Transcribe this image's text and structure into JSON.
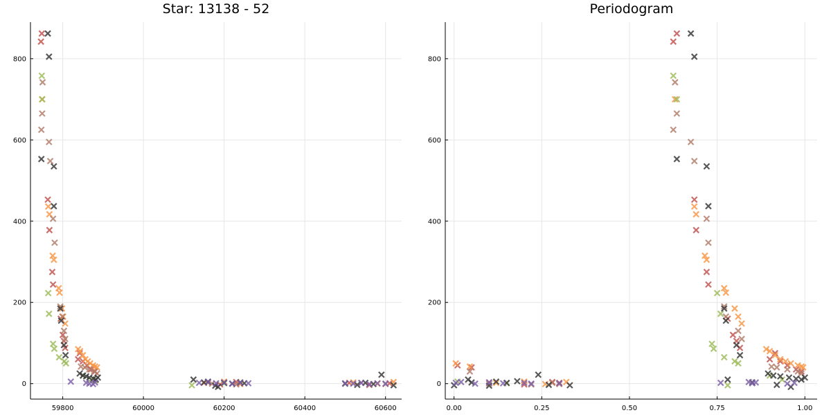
{
  "chart_data": [
    {
      "type": "scatter",
      "title": "Star: 13138 - 52",
      "xlabel": "",
      "ylabel": "",
      "xlim": [
        59720,
        60640
      ],
      "ylim": [
        -38,
        890
      ],
      "xticks": [
        59800,
        60000,
        60200,
        60400,
        60600
      ],
      "xtick_labels": [
        "59800",
        "60000",
        "60200",
        "60400",
        "60600"
      ],
      "yticks": [
        0,
        200,
        400,
        600,
        800
      ],
      "ytick_labels": [
        "0",
        "200",
        "400",
        "600",
        "800"
      ],
      "grid": true,
      "marker": "x",
      "series": [
        {
          "color": "#c0504d",
          "points": [
            [
              59748,
              862
            ],
            [
              59746,
              842
            ],
            [
              59763,
              453
            ],
            [
              59767,
              378
            ],
            [
              59774,
              275
            ],
            [
              59776,
              244
            ],
            [
              59795,
              160
            ],
            [
              59800,
              120
            ],
            [
              59803,
              105
            ],
            [
              59806,
              88
            ],
            [
              59838,
              60
            ],
            [
              59842,
              75
            ],
            [
              59850,
              55
            ],
            [
              59860,
              45
            ],
            [
              59870,
              35
            ],
            [
              59880,
              30
            ],
            [
              60160,
              3
            ],
            [
              60190,
              -2
            ],
            [
              60230,
              4
            ],
            [
              60510,
              2
            ],
            [
              60560,
              -3
            ],
            [
              60610,
              1
            ]
          ]
        },
        {
          "color": "#f79646",
          "points": [
            [
              59749,
              700
            ],
            [
              59764,
              436
            ],
            [
              59767,
              417
            ],
            [
              59775,
              315
            ],
            [
              59778,
              305
            ],
            [
              59790,
              235
            ],
            [
              59792,
              224
            ],
            [
              59798,
              185
            ],
            [
              59801,
              165
            ],
            [
              59806,
              148
            ],
            [
              59838,
              85
            ],
            [
              59843,
              80
            ],
            [
              59850,
              70
            ],
            [
              59856,
              60
            ],
            [
              59862,
              55
            ],
            [
              59868,
              50
            ],
            [
              59875,
              45
            ],
            [
              59880,
              42
            ],
            [
              59885,
              40
            ],
            [
              60150,
              2
            ],
            [
              60200,
              5
            ],
            [
              60240,
              -1
            ],
            [
              60520,
              3
            ],
            [
              60580,
              0
            ],
            [
              60620,
              4
            ]
          ]
        },
        {
          "color": "#9bbb59",
          "points": [
            [
              59748,
              758
            ],
            [
              59749,
              700
            ],
            [
              59764,
              223
            ],
            [
              59766,
              172
            ],
            [
              59776,
              98
            ],
            [
              59779,
              86
            ],
            [
              59791,
              65
            ],
            [
              59804,
              55
            ],
            [
              59808,
              50
            ],
            [
              59850,
              20
            ],
            [
              59870,
              10
            ],
            [
              59880,
              8
            ],
            [
              60120,
              -4
            ],
            [
              60200,
              1
            ]
          ]
        },
        {
          "color": "#b07b68",
          "points": [
            [
              59750,
              742
            ],
            [
              59749,
              665
            ],
            [
              59747,
              625
            ],
            [
              59766,
              595
            ],
            [
              59769,
              548
            ],
            [
              59776,
              406
            ],
            [
              59780,
              347
            ],
            [
              59794,
              190
            ],
            [
              59799,
              165
            ],
            [
              59803,
              130
            ],
            [
              59806,
              110
            ],
            [
              59845,
              42
            ],
            [
              59855,
              40
            ],
            [
              59866,
              35
            ],
            [
              59878,
              30
            ],
            [
              59885,
              25
            ],
            [
              60170,
              0
            ],
            [
              60230,
              -2
            ],
            [
              60540,
              2
            ],
            [
              60600,
              -1
            ]
          ]
        },
        {
          "color": "#333333",
          "points": [
            [
              59763,
              862
            ],
            [
              59766,
              805
            ],
            [
              59747,
              553
            ],
            [
              59778,
              535
            ],
            [
              59778,
              437
            ],
            [
              59794,
              185
            ],
            [
              59796,
              155
            ],
            [
              59803,
              95
            ],
            [
              59807,
              70
            ],
            [
              59842,
              25
            ],
            [
              59850,
              20
            ],
            [
              59858,
              18
            ],
            [
              59866,
              15
            ],
            [
              59876,
              12
            ],
            [
              59882,
              10
            ],
            [
              59887,
              15
            ],
            [
              60124,
              10
            ],
            [
              60150,
              3
            ],
            [
              60160,
              5
            ],
            [
              60178,
              -5
            ],
            [
              60185,
              -8
            ],
            [
              60200,
              2
            ],
            [
              60220,
              0
            ],
            [
              60240,
              3
            ],
            [
              60250,
              1
            ],
            [
              60500,
              0
            ],
            [
              60530,
              -3
            ],
            [
              60550,
              2
            ],
            [
              60570,
              -1
            ],
            [
              60590,
              22
            ],
            [
              60620,
              -4
            ]
          ]
        },
        {
          "color": "#7b5ea7",
          "points": [
            [
              59820,
              5
            ],
            [
              59858,
              2
            ],
            [
              59866,
              0
            ],
            [
              59875,
              -1
            ],
            [
              59880,
              3
            ],
            [
              60138,
              2
            ],
            [
              60160,
              4
            ],
            [
              60180,
              1
            ],
            [
              60200,
              3
            ],
            [
              60220,
              0
            ],
            [
              60240,
              2
            ],
            [
              60260,
              1
            ],
            [
              60500,
              1
            ],
            [
              60520,
              0
            ],
            [
              60540,
              2
            ],
            [
              60560,
              -1
            ],
            [
              60580,
              1
            ],
            [
              60600,
              0
            ]
          ]
        }
      ]
    },
    {
      "type": "scatter",
      "title": "Periodogram",
      "xlabel": "",
      "ylabel": "",
      "xlim": [
        -0.025,
        1.035
      ],
      "ylim": [
        -38,
        890
      ],
      "xticks": [
        0,
        0.25,
        0.5,
        0.75,
        1.0
      ],
      "xtick_labels": [
        "0.00",
        "0.25",
        "0.50",
        "0.75",
        "1.00"
      ],
      "yticks": [
        0,
        200,
        400,
        600,
        800
      ],
      "ytick_labels": [
        "0",
        "200",
        "400",
        "600",
        "800"
      ],
      "grid": true,
      "marker": "x",
      "series": [
        {
          "color": "#c0504d",
          "points": [
            [
              0.635,
              862
            ],
            [
              0.625,
              842
            ],
            [
              0.685,
              453
            ],
            [
              0.69,
              378
            ],
            [
              0.72,
              275
            ],
            [
              0.725,
              244
            ],
            [
              0.78,
              160
            ],
            [
              0.795,
              120
            ],
            [
              0.805,
              105
            ],
            [
              0.815,
              88
            ],
            [
              0.9,
              60
            ],
            [
              0.915,
              75
            ],
            [
              0.93,
              55
            ],
            [
              0.95,
              45
            ],
            [
              0.975,
              35
            ],
            [
              0.99,
              30
            ],
            [
              0.01,
              45
            ],
            [
              0.05,
              40
            ],
            [
              0.1,
              3
            ],
            [
              0.2,
              -2
            ],
            [
              0.28,
              4
            ],
            [
              0.3,
              2
            ]
          ]
        },
        {
          "color": "#f79646",
          "points": [
            [
              0.63,
              700
            ],
            [
              0.685,
              436
            ],
            [
              0.69,
              417
            ],
            [
              0.715,
              315
            ],
            [
              0.72,
              305
            ],
            [
              0.77,
              235
            ],
            [
              0.775,
              224
            ],
            [
              0.8,
              185
            ],
            [
              0.81,
              165
            ],
            [
              0.82,
              148
            ],
            [
              0.89,
              85
            ],
            [
              0.9,
              80
            ],
            [
              0.915,
              70
            ],
            [
              0.93,
              60
            ],
            [
              0.945,
              55
            ],
            [
              0.96,
              50
            ],
            [
              0.98,
              45
            ],
            [
              0.99,
              42
            ],
            [
              0.995,
              40
            ],
            [
              0.005,
              50
            ],
            [
              0.045,
              42
            ],
            [
              0.12,
              2
            ],
            [
              0.2,
              5
            ],
            [
              0.26,
              -1
            ],
            [
              0.32,
              4
            ]
          ]
        },
        {
          "color": "#9bbb59",
          "points": [
            [
              0.625,
              758
            ],
            [
              0.635,
              700
            ],
            [
              0.75,
              223
            ],
            [
              0.76,
              172
            ],
            [
              0.735,
              98
            ],
            [
              0.74,
              86
            ],
            [
              0.77,
              65
            ],
            [
              0.8,
              55
            ],
            [
              0.81,
              50
            ],
            [
              0.9,
              20
            ],
            [
              0.935,
              10
            ],
            [
              0.78,
              -4
            ],
            [
              0.01,
              5
            ],
            [
              0.15,
              1
            ]
          ]
        },
        {
          "color": "#b07b68",
          "points": [
            [
              0.63,
              742
            ],
            [
              0.635,
              665
            ],
            [
              0.625,
              625
            ],
            [
              0.675,
              595
            ],
            [
              0.685,
              548
            ],
            [
              0.72,
              406
            ],
            [
              0.725,
              347
            ],
            [
              0.77,
              190
            ],
            [
              0.775,
              165
            ],
            [
              0.81,
              130
            ],
            [
              0.82,
              110
            ],
            [
              0.905,
              42
            ],
            [
              0.92,
              40
            ],
            [
              0.95,
              35
            ],
            [
              0.98,
              30
            ],
            [
              0.99,
              25
            ],
            [
              0.045,
              30
            ],
            [
              0.1,
              0
            ],
            [
              0.22,
              -2
            ],
            [
              0.28,
              2
            ],
            [
              0.3,
              -1
            ]
          ]
        },
        {
          "color": "#333333",
          "points": [
            [
              0.675,
              862
            ],
            [
              0.685,
              805
            ],
            [
              0.635,
              553
            ],
            [
              0.72,
              535
            ],
            [
              0.725,
              437
            ],
            [
              0.77,
              185
            ],
            [
              0.775,
              155
            ],
            [
              0.805,
              95
            ],
            [
              0.815,
              70
            ],
            [
              0.895,
              25
            ],
            [
              0.91,
              20
            ],
            [
              0.93,
              18
            ],
            [
              0.955,
              15
            ],
            [
              0.975,
              12
            ],
            [
              0.99,
              10
            ],
            [
              1.0,
              15
            ],
            [
              0.0,
              -4
            ],
            [
              0.04,
              10
            ],
            [
              0.05,
              3
            ],
            [
              0.1,
              -5
            ],
            [
              0.12,
              5
            ],
            [
              0.15,
              2
            ],
            [
              0.18,
              6
            ],
            [
              0.24,
              22
            ],
            [
              0.27,
              -3
            ],
            [
              0.33,
              -4
            ],
            [
              0.78,
              10
            ],
            [
              0.85,
              3
            ],
            [
              0.92,
              -3
            ],
            [
              0.96,
              -8
            ]
          ]
        },
        {
          "color": "#7b5ea7",
          "points": [
            [
              0.005,
              2
            ],
            [
              0.02,
              4
            ],
            [
              0.06,
              0
            ],
            [
              0.1,
              3
            ],
            [
              0.14,
              1
            ],
            [
              0.2,
              2
            ],
            [
              0.22,
              0
            ],
            [
              0.3,
              1
            ],
            [
              0.76,
              2
            ],
            [
              0.84,
              4
            ],
            [
              0.85,
              1
            ],
            [
              0.86,
              3
            ],
            [
              0.95,
              0
            ],
            [
              0.97,
              2
            ]
          ]
        }
      ]
    }
  ]
}
